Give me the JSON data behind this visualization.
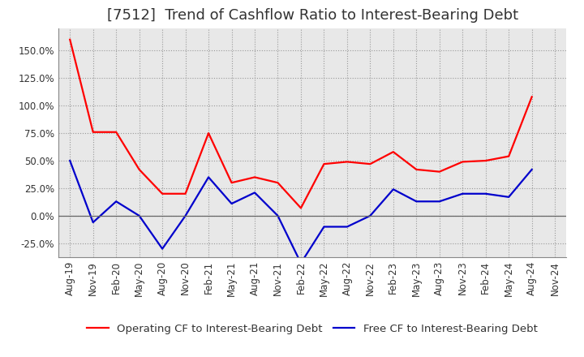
{
  "title": "[7512]  Trend of Cashflow Ratio to Interest-Bearing Debt",
  "x_labels": [
    "Aug-19",
    "Nov-19",
    "Feb-20",
    "May-20",
    "Aug-20",
    "Nov-20",
    "Feb-21",
    "May-21",
    "Aug-21",
    "Nov-21",
    "Feb-22",
    "May-22",
    "Aug-22",
    "Nov-22",
    "Feb-23",
    "May-23",
    "Aug-23",
    "Nov-23",
    "Feb-24",
    "May-24",
    "Aug-24",
    "Nov-24"
  ],
  "operating_cf": [
    1.6,
    0.76,
    0.76,
    0.42,
    0.2,
    0.2,
    0.75,
    0.3,
    0.35,
    0.3,
    0.07,
    0.47,
    0.49,
    0.47,
    0.58,
    0.42,
    0.4,
    0.49,
    0.5,
    0.54,
    1.08,
    null
  ],
  "free_cf": [
    0.5,
    -0.06,
    0.13,
    0.0,
    -0.3,
    0.0,
    0.35,
    0.11,
    0.21,
    0.0,
    -0.43,
    -0.1,
    -0.1,
    0.0,
    0.24,
    0.13,
    0.13,
    0.2,
    0.2,
    0.17,
    0.42,
    null
  ],
  "ylim": [
    -0.375,
    1.7
  ],
  "yticks": [
    -0.25,
    0.0,
    0.25,
    0.5,
    0.75,
    1.0,
    1.25,
    1.5
  ],
  "ytick_labels": [
    "-25.0%",
    "0.0%",
    "25.0%",
    "50.0%",
    "75.0%",
    "100.0%",
    "125.0%",
    "150.0%"
  ],
  "red_color": "#ff0000",
  "blue_color": "#0000cc",
  "background_color": "#ffffff",
  "plot_bg_color": "#e8e8e8",
  "grid_color": "#999999",
  "legend_op": "Operating CF to Interest-Bearing Debt",
  "legend_free": "Free CF to Interest-Bearing Debt",
  "title_fontsize": 13,
  "axis_fontsize": 8.5,
  "legend_fontsize": 9.5,
  "title_color": "#333333"
}
